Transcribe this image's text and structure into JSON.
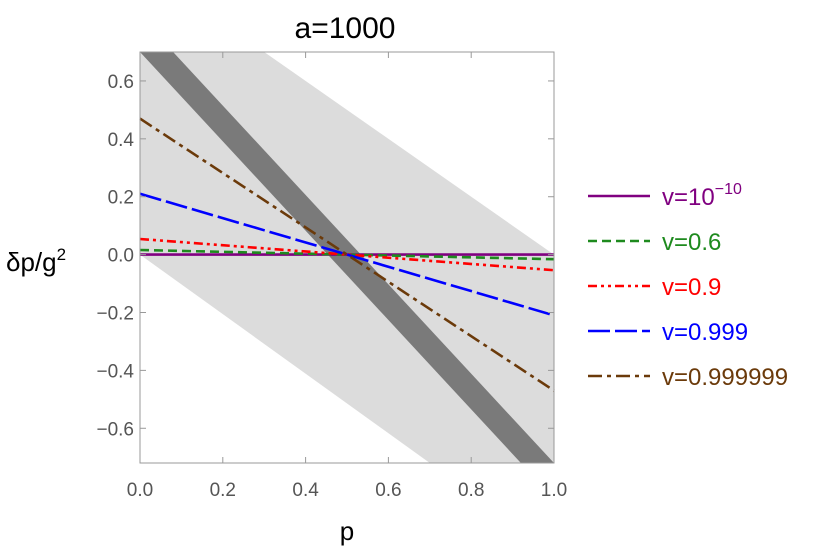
{
  "chart_data": {
    "type": "line",
    "title": "a=1000",
    "xlabel": "p",
    "ylabel": {
      "main": "δp/g",
      "exponent": "2"
    },
    "xlim": [
      0.0,
      1.0
    ],
    "ylim": [
      -0.72,
      0.7
    ],
    "xticks": [
      "0.0",
      "0.2",
      "0.4",
      "0.6",
      "0.8",
      "1.0"
    ],
    "yticks": [
      "0.6",
      "0.4",
      "0.2",
      "0.0",
      "−0.2",
      "−0.4",
      "−0.6"
    ],
    "xtick_values": [
      0.0,
      0.2,
      0.4,
      0.6,
      0.8,
      1.0
    ],
    "ytick_values": [
      0.6,
      0.4,
      0.2,
      0.0,
      -0.2,
      -0.4,
      -0.6
    ],
    "regions": [
      {
        "name": "light band",
        "color": "#dcdcdc",
        "polygon": [
          [
            0.0,
            0.7
          ],
          [
            0.3,
            0.7
          ],
          [
            1.0,
            0.0
          ],
          [
            1.0,
            -0.72
          ],
          [
            0.7,
            -0.72
          ],
          [
            0.0,
            0.0
          ]
        ]
      },
      {
        "name": "dark band",
        "color": "#7a7a7a",
        "polygon": [
          [
            0.0,
            0.7
          ],
          [
            0.08,
            0.7
          ],
          [
            1.0,
            -0.72
          ],
          [
            0.92,
            -0.72
          ],
          [
            0.0,
            0.7
          ]
        ]
      }
    ],
    "series": [
      {
        "name": "v=10^-10",
        "label_main": "v=10",
        "label_exp": "−10",
        "color": "#800080",
        "dash": "",
        "x": [
          0.0,
          1.0
        ],
        "y": [
          0.0,
          0.0
        ]
      },
      {
        "name": "v=0.6",
        "label_main": "v=0.6",
        "label_exp": "",
        "color": "#1e8a1e",
        "dash": "9,5",
        "x": [
          0.0,
          1.0
        ],
        "y": [
          0.016,
          -0.016
        ]
      },
      {
        "name": "v=0.9",
        "label_main": "v=0.9",
        "label_exp": "",
        "color": "#ff0000",
        "dash": "9,4,3,4,3,4",
        "x": [
          0.0,
          1.0
        ],
        "y": [
          0.054,
          -0.054
        ]
      },
      {
        "name": "v=0.999",
        "label_main": "v=0.999",
        "label_exp": "",
        "color": "#0000ff",
        "dash": "22,5",
        "x": [
          0.0,
          1.0
        ],
        "y": [
          0.21,
          -0.21
        ]
      },
      {
        "name": "v=0.999999",
        "label_main": "v=0.999999",
        "label_exp": "",
        "color": "#6b3a0a",
        "dash": "14,5,4,5",
        "x": [
          0.0,
          1.0
        ],
        "y": [
          0.47,
          -0.47
        ]
      }
    ],
    "legend_position": "right"
  }
}
